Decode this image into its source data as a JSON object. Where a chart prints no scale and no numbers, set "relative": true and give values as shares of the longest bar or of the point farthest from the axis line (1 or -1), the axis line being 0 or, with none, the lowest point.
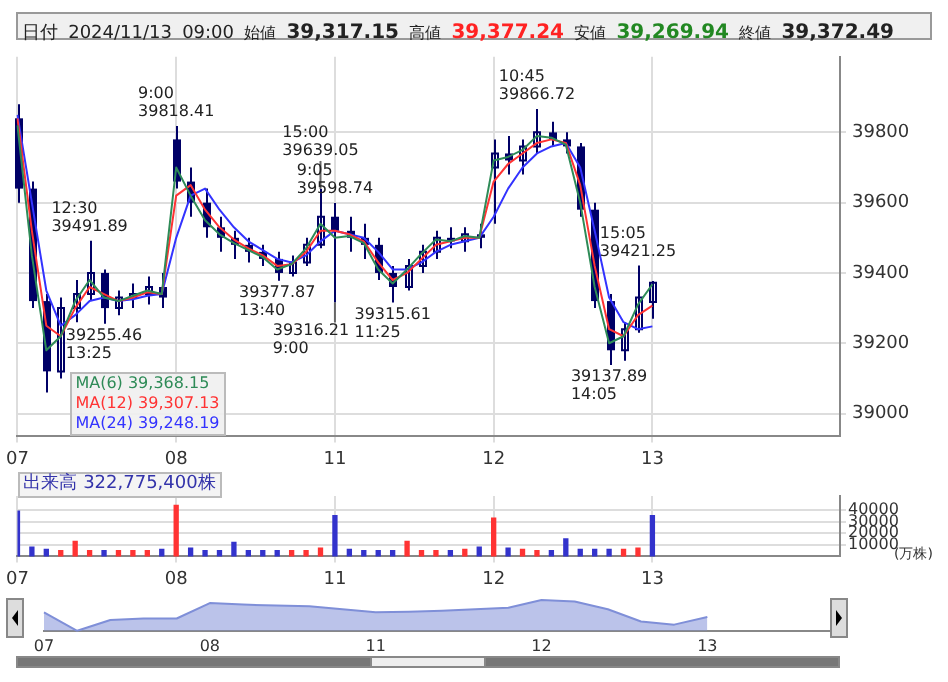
{
  "chart_data": [
    {
      "type": "candlestick",
      "title": "日付 2024/11/13 09:00 始値 39,317.15 高値 39,377.24 安値 39,269.94 終値 39,372.49",
      "categories": [
        "07",
        null,
        null,
        null,
        null,
        null,
        null,
        null,
        null,
        null,
        null,
        "08",
        null,
        null,
        null,
        null,
        null,
        null,
        null,
        null,
        null,
        null,
        "11",
        null,
        null,
        null,
        null,
        null,
        null,
        null,
        null,
        null,
        null,
        "12",
        null,
        null,
        null,
        null,
        null,
        null,
        null,
        null,
        null,
        null,
        "13",
        null,
        null,
        null,
        null,
        null,
        null,
        null,
        null,
        null,
        null,
        null,
        null,
        null
      ],
      "ohlc": [
        [
          39840,
          39880,
          39600,
          39640
        ],
        [
          39640,
          39660,
          39300,
          39320
        ],
        [
          39320,
          39340,
          39060,
          39120
        ],
        [
          39120,
          39330,
          39100,
          39300
        ],
        [
          39300,
          39380,
          39260,
          39340
        ],
        [
          39340,
          39491.89,
          39320,
          39400
        ],
        [
          39400,
          39410,
          39255.46,
          39300
        ],
        [
          39300,
          39350,
          39280,
          39330
        ],
        [
          39330,
          39370,
          39300,
          39340
        ],
        [
          39340,
          39390,
          39310,
          39360
        ],
        [
          39360,
          39400,
          39300,
          39330
        ],
        [
          39780,
          39818.41,
          39640,
          39660
        ],
        [
          39660,
          39700,
          39560,
          39600
        ],
        [
          39600,
          39640,
          39500,
          39530
        ],
        [
          39530,
          39560,
          39460,
          39500
        ],
        [
          39500,
          39520,
          39440,
          39480
        ],
        [
          39480,
          39500,
          39430,
          39460
        ],
        [
          39460,
          39480,
          39420,
          39440
        ],
        [
          39440,
          39460,
          39377.87,
          39400
        ],
        [
          39400,
          39450,
          39390,
          39430
        ],
        [
          39430,
          39500,
          39420,
          39480
        ],
        [
          39480,
          39639.05,
          39470,
          39560
        ],
        [
          39560,
          39598.74,
          39316.21,
          39520
        ],
        [
          39520,
          39560,
          39460,
          39500
        ],
        [
          39500,
          39540,
          39440,
          39480
        ],
        [
          39480,
          39500,
          39380,
          39400
        ],
        [
          39400,
          39420,
          39315.61,
          39360
        ],
        [
          39360,
          39440,
          39350,
          39420
        ],
        [
          39420,
          39480,
          39400,
          39460
        ],
        [
          39460,
          39520,
          39440,
          39500
        ],
        [
          39500,
          39530,
          39470,
          39490
        ],
        [
          39490,
          39530,
          39460,
          39510
        ],
        [
          39510,
          39540,
          39470,
          39500
        ],
        [
          39700,
          39780,
          39540,
          39740
        ],
        [
          39740,
          39790,
          39680,
          39720
        ],
        [
          39720,
          39780,
          39680,
          39760
        ],
        [
          39760,
          39866.72,
          39740,
          39800
        ],
        [
          39800,
          39830,
          39760,
          39780
        ],
        [
          39780,
          39800,
          39740,
          39760
        ],
        [
          39760,
          39770,
          39560,
          39580
        ],
        [
          39580,
          39600,
          39300,
          39320
        ],
        [
          39320,
          39340,
          39137.89,
          39180
        ],
        [
          39180,
          39260,
          39150,
          39240
        ],
        [
          39240,
          39421.25,
          39230,
          39330
        ],
        [
          39317.15,
          39377.24,
          39269.94,
          39372.49
        ],
        null,
        null,
        null,
        null,
        null,
        null,
        null,
        null,
        null,
        null,
        null,
        null,
        null
      ],
      "color": "#000066",
      "series": [
        {
          "name": "MA(6) 39,368.15",
          "type": "line",
          "color": "#2e8b57",
          "values": [
            39820,
            39450,
            39180,
            39220,
            39320,
            39380,
            39330,
            39320,
            39335,
            39350,
            39340,
            39700,
            39620,
            39550,
            39510,
            39485,
            39465,
            39445,
            39410,
            39425,
            39470,
            39540,
            39500,
            39505,
            39485,
            39410,
            39370,
            39410,
            39455,
            39495,
            39490,
            39505,
            39500,
            39720,
            39730,
            39750,
            39790,
            39785,
            39765,
            39600,
            39360,
            39200,
            39220,
            39310,
            39368,
            null,
            null,
            null,
            null,
            null,
            null,
            null,
            null,
            null,
            null,
            null,
            null,
            null
          ]
        },
        {
          "name": "MA(12) 39,307.13",
          "type": "line",
          "color": "#ff3333",
          "values": [
            39840,
            39520,
            39250,
            39220,
            39300,
            39360,
            39340,
            39320,
            39330,
            39345,
            39340,
            39620,
            39650,
            39580,
            39530,
            39495,
            39470,
            39450,
            39420,
            39425,
            39460,
            39520,
            39520,
            39510,
            39490,
            39430,
            39380,
            39400,
            39440,
            39480,
            39490,
            39500,
            39500,
            39660,
            39710,
            39740,
            39770,
            39780,
            39770,
            39650,
            39420,
            39240,
            39220,
            39280,
            39307,
            null,
            null,
            null,
            null,
            null,
            null,
            null,
            null,
            null,
            null,
            null,
            null,
            null
          ]
        },
        {
          "name": "MA(24) 39,248.19",
          "type": "line",
          "color": "#3333ff",
          "values": [
            39850,
            39600,
            39350,
            39250,
            39280,
            39320,
            39330,
            39320,
            39325,
            39335,
            39340,
            39500,
            39620,
            39640,
            39580,
            39530,
            39490,
            39465,
            39440,
            39430,
            39450,
            39490,
            39520,
            39510,
            39500,
            39460,
            39410,
            39410,
            39430,
            39460,
            39480,
            39490,
            39500,
            39560,
            39640,
            39700,
            39740,
            39760,
            39770,
            39700,
            39520,
            39330,
            39260,
            39240,
            39248,
            null,
            null,
            null,
            null,
            null,
            null,
            null,
            null,
            null,
            null,
            null,
            null,
            null
          ]
        }
      ],
      "annotations": [
        {
          "text": "12:30\n39491.89",
          "y": 39491.89
        },
        {
          "text": "39255.46\n13:25",
          "y": 39255.46
        },
        {
          "text": "9:00\n39818.41",
          "x": "08",
          "y": 39818.41
        },
        {
          "text": "39377.87\n13:40",
          "y": 39377.87
        },
        {
          "text": "15:00\n39639.05",
          "y": 39639.05
        },
        {
          "text": "9:05\n39598.74",
          "x": "11",
          "y": 39598.74
        },
        {
          "text": "39316.21\n9:00",
          "x": "11",
          "y": 39316.21
        },
        {
          "text": "39315.61\n11:25",
          "y": 39315.61
        },
        {
          "text": "10:45\n39866.72",
          "y": 39866.72
        },
        {
          "text": "39137.89\n14:05",
          "y": 39137.89
        },
        {
          "text": "15:05\n39421.25",
          "y": 39421.25
        }
      ],
      "ylim": [
        38935,
        40015
      ],
      "yticks": [
        39000,
        39200,
        39400,
        39600,
        39800
      ],
      "grid": true,
      "legend": "bottom left"
    },
    {
      "type": "bar",
      "title": "出来高 322,775,400株",
      "ylabel": "(万株)",
      "categories": [
        "07",
        null,
        null,
        null,
        null,
        null,
        null,
        null,
        null,
        null,
        null,
        "08",
        null,
        null,
        null,
        null,
        null,
        null,
        null,
        null,
        null,
        null,
        "11",
        null,
        null,
        null,
        null,
        null,
        null,
        null,
        null,
        null,
        null,
        "12",
        null,
        null,
        null,
        null,
        null,
        null,
        null,
        null,
        null,
        null,
        "13",
        null,
        null,
        null,
        null,
        null,
        null,
        null,
        null,
        null,
        null,
        null,
        null,
        null
      ],
      "values": [
        39000,
        8000,
        6000,
        5000,
        13000,
        5000,
        5000,
        5000,
        5000,
        5000,
        6000,
        44000,
        7000,
        5000,
        5000,
        12000,
        5000,
        5000,
        5000,
        5000,
        5000,
        7000,
        35000,
        6000,
        5000,
        5000,
        5000,
        13000,
        5000,
        5000,
        5000,
        6000,
        8000,
        33000,
        7000,
        6000,
        5000,
        5000,
        15000,
        6000,
        6000,
        6000,
        6000,
        7000,
        35000,
        null,
        null,
        null,
        null,
        null,
        null,
        null,
        null,
        null,
        null,
        null,
        null,
        null
      ],
      "colors": [
        "#3333cc",
        "#3333cc",
        "#3333cc",
        "#ff3333",
        "#ff3333",
        "#ff3333",
        "#3333cc",
        "#ff3333",
        "#ff3333",
        "#ff3333",
        "#3333cc",
        "#ff3333",
        "#3333cc",
        "#3333cc",
        "#3333cc",
        "#3333cc",
        "#3333cc",
        "#3333cc",
        "#3333cc",
        "#ff3333",
        "#ff3333",
        "#ff3333",
        "#3333cc",
        "#3333cc",
        "#3333cc",
        "#3333cc",
        "#3333cc",
        "#ff3333",
        "#ff3333",
        "#ff3333",
        "#3333cc",
        "#ff3333",
        "#3333cc",
        "#ff3333",
        "#3333cc",
        "#ff3333",
        "#ff3333",
        "#3333cc",
        "#3333cc",
        "#3333cc",
        "#3333cc",
        "#3333cc",
        "#ff3333",
        "#ff3333",
        "#3333cc",
        null,
        null,
        null,
        null,
        null,
        null,
        null,
        null,
        null,
        null,
        null,
        null,
        null
      ],
      "ylim": [
        0,
        52000
      ],
      "yticks": [
        10000,
        20000,
        30000,
        40000
      ],
      "grid": true
    },
    {
      "type": "area",
      "relative": true,
      "color": "#7f8fd8",
      "categories": [
        "07",
        null,
        null,
        null,
        null,
        "08",
        null,
        null,
        null,
        null,
        "11",
        null,
        null,
        null,
        null,
        "12",
        null,
        null,
        null,
        null,
        "13",
        null,
        null,
        null,
        null
      ],
      "values": [
        0.6,
        0,
        0.35,
        0.4,
        0.4,
        0.9,
        0.85,
        0.82,
        0.8,
        0.7,
        0.6,
        0.62,
        0.65,
        0.7,
        0.75,
        1,
        0.95,
        0.7,
        0.3,
        0.2,
        0.45,
        null,
        null,
        null,
        null
      ]
    }
  ]
}
